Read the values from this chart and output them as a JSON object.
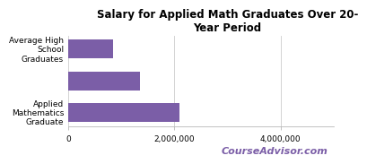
{
  "title": "Salary for Applied Math Graduates Over 20-\nYear Period",
  "categories": [
    "Applied\nMathematics\nGraduate",
    "",
    "Average High\nSchool\nGraduates"
  ],
  "values": [
    2100000,
    1350000,
    850000
  ],
  "bar_color": "#7B5EA7",
  "xlim": [
    0,
    5000000
  ],
  "xticks": [
    0,
    2000000,
    4000000
  ],
  "xtick_labels": [
    "0",
    "2,000,000",
    "4,000,000"
  ],
  "watermark": "CourseAdvisor.com",
  "watermark_color": "#7B5EA7",
  "background_color": "#FFFFFF",
  "title_fontsize": 8.5,
  "tick_fontsize": 6.5,
  "watermark_fontsize": 8
}
